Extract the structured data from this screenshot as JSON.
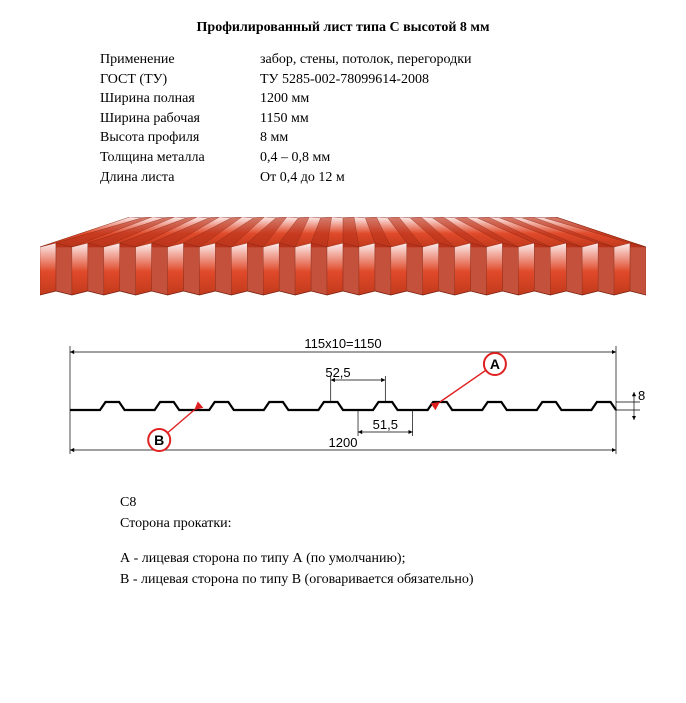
{
  "title": "Профилированный лист типа С высотой 8 мм",
  "specs": [
    {
      "label": "Применение",
      "value": "забор, стены, потолок, перегородки"
    },
    {
      "label": "ГОСТ (ТУ)",
      "value": "ТУ 5285-002-78099614-2008"
    },
    {
      "label": "Ширина полная",
      "value": "1200 мм"
    },
    {
      "label": "Ширина рабочая",
      "value": "1150 мм"
    },
    {
      "label": "Высота профиля",
      "value": "8 мм"
    },
    {
      "label": "Толщина металла",
      "value": "0,4 – 0,8 мм"
    },
    {
      "label": "Длина листа",
      "value": "От 0,4 до 12 м"
    }
  ],
  "profile3d": {
    "rib_count": 19,
    "color_top": "#fdecec",
    "color_mid": "#e04a2a",
    "color_dark": "#c23a1c",
    "color_shadow": "#b8321a",
    "outline": "#7a2210"
  },
  "cross_section": {
    "rib_count": 10,
    "dims": {
      "width_work": "115x10=1150",
      "width_total": "1200",
      "pitch_top": "52,5",
      "pitch_btm": "51,5",
      "height": "8",
      "label_A": "A",
      "label_B": "B"
    },
    "colors": {
      "profile_line": "#000000",
      "dim_line": "#000000",
      "callout_line": "#e02020",
      "callout_fill": "#ffffff",
      "callout_border": "#e02020",
      "callout_text": "#000000",
      "text": "#000000"
    },
    "fontsize_dim": 13
  },
  "bottom": {
    "line1": "С8",
    "line2": "Сторона прокатки:",
    "line3": "А -  лицевая сторона по типу А (по умолчанию);",
    "line4": "В -  лицевая сторона по типу В (оговаривается обязательно)"
  }
}
